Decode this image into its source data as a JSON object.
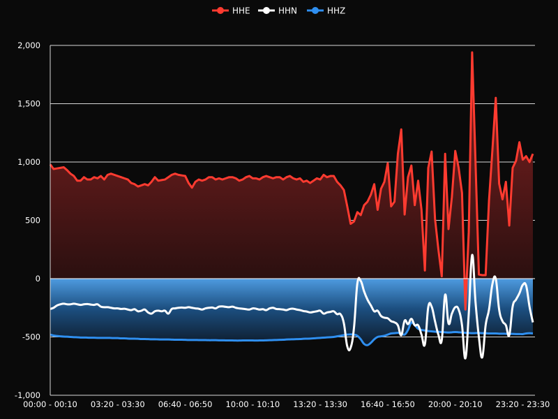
{
  "chart_data": {
    "type": "area",
    "title": "",
    "legend": {
      "position": "top-center",
      "items": [
        "HHE",
        "HHN",
        "HHZ"
      ]
    },
    "xlabel": "",
    "ylabel": "",
    "ylim": [
      -1000,
      2000
    ],
    "y_ticks": [
      -1000,
      -500,
      0,
      500,
      1000,
      1500,
      2000
    ],
    "y_tick_labels": [
      "-1,000",
      "-500",
      "0",
      "500",
      "1,000",
      "1,500",
      "2,000"
    ],
    "point_count": 144,
    "interval_minutes": 10,
    "x_tick_every": 20,
    "x_tick_labels": [
      "00:00 - 00:10",
      "03:20 - 03:30",
      "06:40 - 06:50",
      "10:00 - 10:10",
      "13:20 - 13:30",
      "16:40 - 16:50",
      "20:00 - 20:10",
      "23:20 - 23:30"
    ],
    "grid": true,
    "series": [
      {
        "name": "HHE",
        "color": "#ff3b30",
        "fill": "area-to-zero",
        "smooth": false,
        "values": [
          980,
          940,
          945,
          950,
          955,
          930,
          900,
          880,
          840,
          840,
          870,
          850,
          850,
          870,
          860,
          880,
          850,
          890,
          900,
          890,
          880,
          870,
          860,
          850,
          820,
          810,
          790,
          800,
          810,
          800,
          830,
          870,
          840,
          845,
          850,
          870,
          890,
          900,
          890,
          885,
          880,
          820,
          780,
          830,
          850,
          840,
          850,
          870,
          870,
          850,
          860,
          850,
          860,
          870,
          870,
          860,
          840,
          850,
          870,
          880,
          860,
          860,
          850,
          870,
          880,
          870,
          860,
          870,
          870,
          850,
          870,
          880,
          860,
          850,
          860,
          830,
          840,
          820,
          840,
          860,
          850,
          890,
          870,
          880,
          880,
          830,
          800,
          760,
          620,
          470,
          490,
          570,
          545,
          630,
          660,
          720,
          810,
          590,
          770,
          830,
          990,
          620,
          660,
          1070,
          1280,
          550,
          870,
          970,
          630,
          840,
          590,
          70,
          950,
          1090,
          515,
          250,
          20,
          1070,
          425,
          700,
          1095,
          950,
          735,
          -265,
          400,
          1940,
          1000,
          35,
          30,
          30,
          670,
          1100,
          1550,
          815,
          680,
          830,
          455,
          950,
          1010,
          1170,
          1020,
          1050,
          1000,
          1070
        ]
      },
      {
        "name": "HHN",
        "color": "#ffffff",
        "fill": "none",
        "smooth": true,
        "values": [
          -260,
          -250,
          -230,
          -220,
          -215,
          -220,
          -220,
          -215,
          -220,
          -225,
          -220,
          -218,
          -222,
          -225,
          -220,
          -240,
          -245,
          -245,
          -250,
          -255,
          -255,
          -260,
          -258,
          -265,
          -270,
          -262,
          -280,
          -275,
          -265,
          -290,
          -300,
          -280,
          -275,
          -280,
          -275,
          -300,
          -260,
          -255,
          -250,
          -248,
          -250,
          -245,
          -250,
          -255,
          -258,
          -265,
          -255,
          -250,
          -248,
          -255,
          -240,
          -238,
          -242,
          -245,
          -240,
          -250,
          -255,
          -258,
          -262,
          -265,
          -255,
          -258,
          -265,
          -262,
          -270,
          -255,
          -250,
          -260,
          -262,
          -265,
          -270,
          -260,
          -258,
          -265,
          -270,
          -278,
          -282,
          -290,
          -285,
          -280,
          -275,
          -300,
          -290,
          -285,
          -280,
          -305,
          -305,
          -383,
          -580,
          -593,
          -420,
          -40,
          -20,
          -110,
          -180,
          -230,
          -280,
          -275,
          -320,
          -335,
          -340,
          -365,
          -375,
          -400,
          -485,
          -360,
          -390,
          -345,
          -400,
          -400,
          -480,
          -563,
          -245,
          -240,
          -365,
          -480,
          -527,
          -138,
          -383,
          -300,
          -245,
          -265,
          -400,
          -683,
          -300,
          203,
          -200,
          -500,
          -675,
          -400,
          -265,
          -48,
          0,
          -265,
          -365,
          -400,
          -485,
          -240,
          -180,
          -126,
          -54,
          -60,
          -240,
          -375
        ]
      },
      {
        "name": "HHZ",
        "color": "#2f8ff0",
        "fill": "area-to-zero",
        "smooth": true,
        "values": [
          -480,
          -488,
          -492,
          -495,
          -497,
          -498,
          -500,
          -502,
          -503,
          -505,
          -505,
          -506,
          -507,
          -507,
          -508,
          -508,
          -508,
          -508,
          -509,
          -510,
          -510,
          -512,
          -512,
          -514,
          -515,
          -515,
          -516,
          -518,
          -518,
          -519,
          -520,
          -520,
          -521,
          -522,
          -522,
          -522,
          -523,
          -524,
          -524,
          -524,
          -525,
          -526,
          -526,
          -526,
          -527,
          -527,
          -527,
          -528,
          -528,
          -528,
          -529,
          -529,
          -530,
          -530,
          -530,
          -531,
          -531,
          -530,
          -530,
          -530,
          -530,
          -531,
          -530,
          -530,
          -529,
          -528,
          -527,
          -526,
          -525,
          -524,
          -522,
          -521,
          -520,
          -519,
          -518,
          -516,
          -515,
          -514,
          -512,
          -510,
          -508,
          -506,
          -504,
          -502,
          -500,
          -495,
          -490,
          -485,
          -480,
          -478,
          -480,
          -490,
          -520,
          -560,
          -570,
          -550,
          -520,
          -500,
          -495,
          -490,
          -480,
          -470,
          -468,
          -465,
          -470,
          -480,
          -440,
          -377,
          -400,
          -430,
          -440,
          -445,
          -450,
          -452,
          -455,
          -456,
          -458,
          -460,
          -462,
          -460,
          -458,
          -460,
          -462,
          -465,
          -466,
          -468,
          -467,
          -466,
          -468,
          -468,
          -470,
          -470,
          -470,
          -472,
          -472,
          -473,
          -474,
          -474,
          -475,
          -475,
          -476,
          -470,
          -468,
          -470
        ]
      }
    ]
  }
}
